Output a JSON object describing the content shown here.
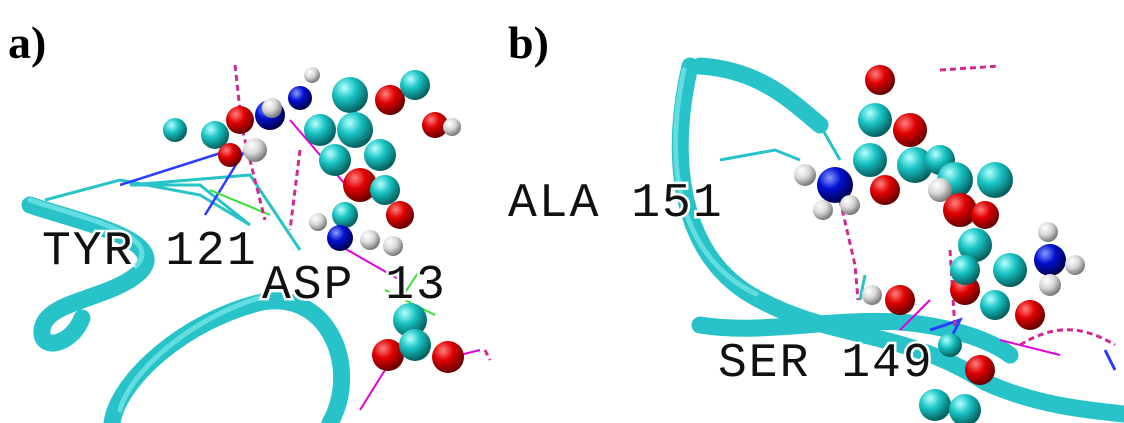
{
  "panels": [
    {
      "label": "a)",
      "residues": [
        "TYR 121",
        "ASP 13"
      ]
    },
    {
      "label": "b)",
      "residues": [
        "ALA 151",
        "SER 149"
      ]
    }
  ]
}
